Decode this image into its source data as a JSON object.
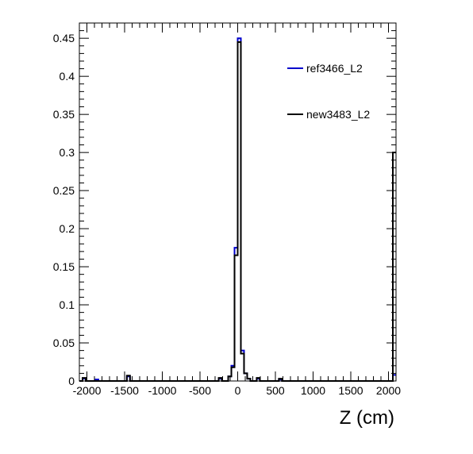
{
  "chart_data": {
    "type": "histogram",
    "xlabel": "Z (cm)",
    "xlim": [
      -2100,
      2100
    ],
    "ylim": [
      0,
      0.47
    ],
    "xticks": [
      -2000,
      -1500,
      -1000,
      -500,
      0,
      500,
      1000,
      1500,
      2000
    ],
    "xtick_labels": [
      "-2000",
      "-1500",
      "-1000",
      "-500",
      "0",
      "500",
      "1000",
      "1500",
      "2000"
    ],
    "yticks": [
      0,
      0.05,
      0.1,
      0.15,
      0.2,
      0.25,
      0.3,
      0.35,
      0.4,
      0.45
    ],
    "ytick_labels": [
      "0",
      "0.05",
      "0.1",
      "0.15",
      "0.2",
      "0.25",
      "0.3",
      "0.35",
      "0.4",
      "0.45"
    ],
    "grid": false,
    "legend_position": "top-right",
    "bin_width": 42,
    "bin_start": -2100,
    "series": [
      {
        "name": "ref3466_L2",
        "color": "#0000cc",
        "bins": [
          {
            "x": -2058,
            "y": 0.003
          },
          {
            "x": -1890,
            "y": 0.002
          },
          {
            "x": -1470,
            "y": 0.006
          },
          {
            "x": -252,
            "y": 0.003
          },
          {
            "x": -126,
            "y": 0.006
          },
          {
            "x": -84,
            "y": 0.02
          },
          {
            "x": -42,
            "y": 0.175
          },
          {
            "x": 0,
            "y": 0.45
          },
          {
            "x": 42,
            "y": 0.04
          },
          {
            "x": 84,
            "y": 0.01
          },
          {
            "x": 126,
            "y": 0.003
          },
          {
            "x": 252,
            "y": 0.003
          },
          {
            "x": 546,
            "y": 0.002
          },
          {
            "x": 2058,
            "y": 0.008
          }
        ]
      },
      {
        "name": "new3483_L2",
        "color": "#000000",
        "bins": [
          {
            "x": -2058,
            "y": 0.004
          },
          {
            "x": -1470,
            "y": 0.007
          },
          {
            "x": -252,
            "y": 0.004
          },
          {
            "x": -126,
            "y": 0.006
          },
          {
            "x": -84,
            "y": 0.018
          },
          {
            "x": -42,
            "y": 0.165
          },
          {
            "x": 0,
            "y": 0.445
          },
          {
            "x": 42,
            "y": 0.036
          },
          {
            "x": 84,
            "y": 0.01
          },
          {
            "x": 126,
            "y": 0.003
          },
          {
            "x": 252,
            "y": 0.004
          },
          {
            "x": 546,
            "y": 0.003
          },
          {
            "x": 2058,
            "y": 0.3
          }
        ]
      }
    ]
  }
}
